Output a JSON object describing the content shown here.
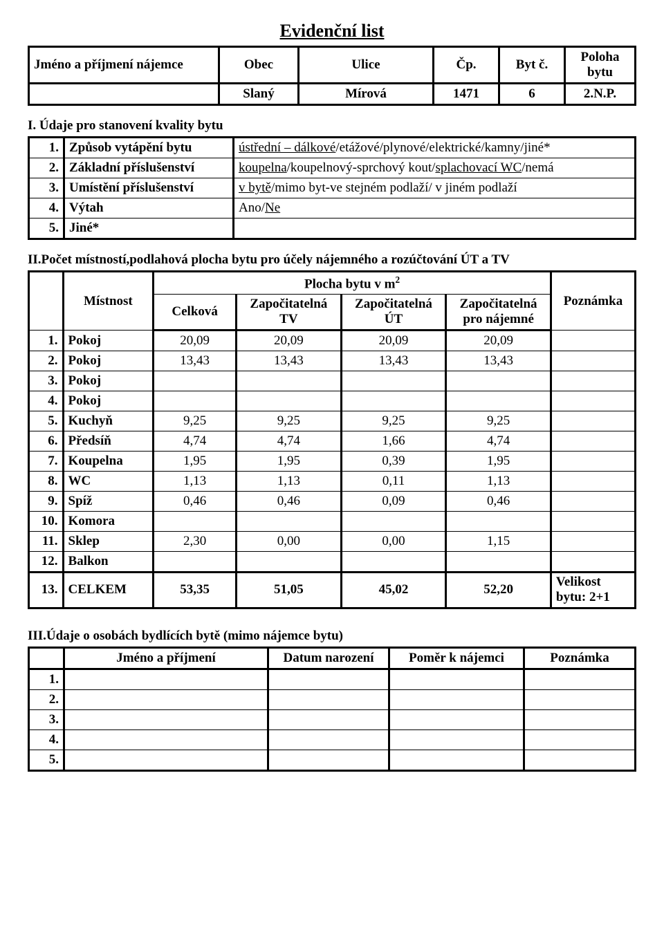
{
  "title": "Evidenční list",
  "table1": {
    "headers": [
      "Jméno a příjmení nájemce",
      "Obec",
      "Ulice",
      "Čp.",
      "Byt č.",
      "Poloha bytu"
    ],
    "row": [
      "",
      "Slaný",
      "Mírová",
      "1471",
      "6",
      "2.N.P."
    ]
  },
  "section1": {
    "heading": "I. Údaje pro stanovení kvality bytu",
    "rows": [
      {
        "n": "1.",
        "label": "Způsob vytápění bytu",
        "value_html": "<u>ústřední – dálkové</u>/etážové/plynové/elektrické/kamny/jiné*"
      },
      {
        "n": "2.",
        "label": "Základní příslušenství",
        "value_html": "<u>koupelna</u>/koupelnový-sprchový kout/<u>splachovací WC</u>/nemá"
      },
      {
        "n": "3.",
        "label": "Umístění příslušenství",
        "value_html": "<u>v bytě</u>/mimo byt-ve stejném podlaží/ v jiném podlaží"
      },
      {
        "n": "4.",
        "label": "Výtah",
        "value_html": "Ano/<u>Ne</u>"
      },
      {
        "n": "5.",
        "label": "Jiné*",
        "value_html": ""
      }
    ]
  },
  "section2": {
    "heading": "II.Počet místností,podlahová plocha bytu pro účely nájemného a rozúčtování ÚT a TV",
    "col_room": "Místnost",
    "col_area_super": "Plocha bytu v m",
    "col_area_unit": "2",
    "col_celkova": "Celková",
    "col_tv": "Započitatelná TV",
    "col_ut": "Započitatelná ÚT",
    "col_najem": "Započitatelná pro nájemné",
    "col_note": "Poznámka",
    "rows": [
      {
        "n": "1.",
        "room": "Pokoj",
        "c": "20,09",
        "tv": "20,09",
        "ut": "20,09",
        "nj": "20,09",
        "note": ""
      },
      {
        "n": "2.",
        "room": "Pokoj",
        "c": "13,43",
        "tv": "13,43",
        "ut": "13,43",
        "nj": "13,43",
        "note": ""
      },
      {
        "n": "3.",
        "room": "Pokoj",
        "c": "",
        "tv": "",
        "ut": "",
        "nj": "",
        "note": ""
      },
      {
        "n": "4.",
        "room": "Pokoj",
        "c": "",
        "tv": "",
        "ut": "",
        "nj": "",
        "note": ""
      },
      {
        "n": "5.",
        "room": "Kuchyň",
        "c": "9,25",
        "tv": "9,25",
        "ut": "9,25",
        "nj": "9,25",
        "note": ""
      },
      {
        "n": "6.",
        "room": "Předsíň",
        "c": "4,74",
        "tv": "4,74",
        "ut": "1,66",
        "nj": "4,74",
        "note": ""
      },
      {
        "n": "7.",
        "room": "Koupelna",
        "c": "1,95",
        "tv": "1,95",
        "ut": "0,39",
        "nj": "1,95",
        "note": ""
      },
      {
        "n": "8.",
        "room": "WC",
        "c": "1,13",
        "tv": "1,13",
        "ut": "0,11",
        "nj": "1,13",
        "note": ""
      },
      {
        "n": "9.",
        "room": "Spíž",
        "c": "0,46",
        "tv": "0,46",
        "ut": "0,09",
        "nj": "0,46",
        "note": ""
      },
      {
        "n": "10.",
        "room": "Komora",
        "c": "",
        "tv": "",
        "ut": "",
        "nj": "",
        "note": ""
      },
      {
        "n": "11.",
        "room": "Sklep",
        "c": "2,30",
        "tv": "0,00",
        "ut": "0,00",
        "nj": "1,15",
        "note": ""
      },
      {
        "n": "12.",
        "room": "Balkon",
        "c": "",
        "tv": "",
        "ut": "",
        "nj": "",
        "note": ""
      }
    ],
    "total": {
      "n": "13.",
      "room": "CELKEM",
      "c": "53,35",
      "tv": "51,05",
      "ut": "45,02",
      "nj": "52,20",
      "note": "Velikost bytu: 2+1"
    }
  },
  "section3": {
    "heading": "III.Údaje o osobách bydlících bytě (mimo nájemce bytu)",
    "headers": [
      "Jméno a příjmení",
      "Datum narození",
      "Poměr k nájemci",
      "Poznámka"
    ],
    "rows": [
      "1.",
      "2.",
      "3.",
      "4.",
      "5."
    ]
  }
}
